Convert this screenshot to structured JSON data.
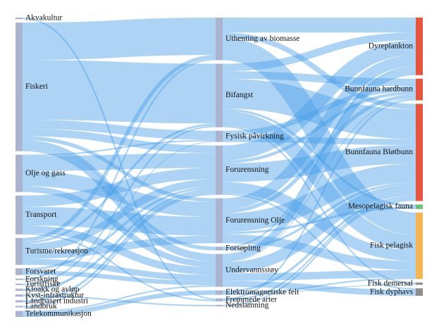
{
  "chart_data": {
    "type": "sankey",
    "link_color": "#4a9fe8",
    "nodes": [
      {
        "name": "Akvakultur",
        "column": 0,
        "color": "#aab4cf"
      },
      {
        "name": "Fiskeri",
        "column": 0,
        "color": "#aab4cf"
      },
      {
        "name": "Olje og gass",
        "column": 0,
        "color": "#aab4cf"
      },
      {
        "name": "Transport",
        "column": 0,
        "color": "#aab4cf"
      },
      {
        "name": "Turisme/rekreasjon",
        "column": 0,
        "color": "#aab4cf"
      },
      {
        "name": "Forsvaret",
        "column": 0,
        "color": "#aab4cf"
      },
      {
        "name": "Forskning",
        "column": 0,
        "color": "#aab4cf"
      },
      {
        "name": "Turistfiske",
        "column": 0,
        "color": "#aab4cf"
      },
      {
        "name": "Kloakk og avløp",
        "column": 0,
        "color": "#aab4cf"
      },
      {
        "name": "Kyst-infrastruktur",
        "column": 0,
        "color": "#aab4cf"
      },
      {
        "name": "Landbasert industri",
        "column": 0,
        "color": "#aab4cf"
      },
      {
        "name": "Landbruk",
        "column": 0,
        "color": "#aab4cf"
      },
      {
        "name": "Telekommunikasjon",
        "column": 0,
        "color": "#aab4cf"
      },
      {
        "name": "Uthenting av biomasse",
        "column": 1,
        "color": "#aab4cf"
      },
      {
        "name": "Bifangst",
        "column": 1,
        "color": "#aab4cf"
      },
      {
        "name": "Fysisk påvirkning",
        "column": 1,
        "color": "#aab4cf"
      },
      {
        "name": "Forurensning",
        "column": 1,
        "color": "#aab4cf"
      },
      {
        "name": "Forurensning Olje",
        "column": 1,
        "color": "#aab4cf"
      },
      {
        "name": "Forsøpling",
        "column": 1,
        "color": "#aab4cf"
      },
      {
        "name": "Undervannsstøy",
        "column": 1,
        "color": "#aab4cf"
      },
      {
        "name": "Elektromagnetiske felt",
        "column": 1,
        "color": "#aab4cf"
      },
      {
        "name": "Fremmede arter",
        "column": 1,
        "color": "#aab4cf"
      },
      {
        "name": "Nedslamning",
        "column": 1,
        "color": "#aab4cf"
      },
      {
        "name": "Dyreplankton",
        "column": 2,
        "color": "#e8553e"
      },
      {
        "name": "Bunnfauna hardbunn",
        "column": 2,
        "color": "#e8553e"
      },
      {
        "name": "Bunnfauna Bløtbunn",
        "column": 2,
        "color": "#e8553e"
      },
      {
        "name": "Mesopelagisk fauna",
        "column": 2,
        "color": "#6cc07a"
      },
      {
        "name": "Fisk pelagisk",
        "column": 2,
        "color": "#f5b552"
      },
      {
        "name": "Fisk demersal",
        "column": 2,
        "color": "#8c8c8c"
      },
      {
        "name": "Fisk dyphavs",
        "column": 2,
        "color": "#8c8c8c"
      }
    ],
    "links": [
      {
        "source": "Akvakultur",
        "target": "Fremmede arter",
        "value": 2
      },
      {
        "source": "Fiskeri",
        "target": "Uthenting av biomasse",
        "value": 50
      },
      {
        "source": "Fiskeri",
        "target": "Bifangst",
        "value": 80
      },
      {
        "source": "Fiskeri",
        "target": "Fysisk påvirkning",
        "value": 12
      },
      {
        "source": "Fiskeri",
        "target": "Forurensning",
        "value": 10
      },
      {
        "source": "Fiskeri",
        "target": "Forurensning Olje",
        "value": 5
      },
      {
        "source": "Fiskeri",
        "target": "Forsøpling",
        "value": 5
      },
      {
        "source": "Fiskeri",
        "target": "Undervannsstøy",
        "value": 10
      },
      {
        "source": "Olje og gass",
        "target": "Fysisk påvirkning",
        "value": 2
      },
      {
        "source": "Olje og gass",
        "target": "Forurensning",
        "value": 20
      },
      {
        "source": "Olje og gass",
        "target": "Forurensning Olje",
        "value": 20
      },
      {
        "source": "Olje og gass",
        "target": "Undervannsstøy",
        "value": 8
      },
      {
        "source": "Transport",
        "target": "Forurensning",
        "value": 15
      },
      {
        "source": "Transport",
        "target": "Forurensning Olje",
        "value": 25
      },
      {
        "source": "Transport",
        "target": "Undervannsstøy",
        "value": 10
      },
      {
        "source": "Transport",
        "target": "Fremmede arter",
        "value": 2
      },
      {
        "source": "Turisme/rekreasjon",
        "target": "Uthenting av biomasse",
        "value": 5
      },
      {
        "source": "Turisme/rekreasjon",
        "target": "Bifangst",
        "value": 3
      },
      {
        "source": "Turisme/rekreasjon",
        "target": "Forurensning",
        "value": 10
      },
      {
        "source": "Turisme/rekreasjon",
        "target": "Forurensning Olje",
        "value": 10
      },
      {
        "source": "Turisme/rekreasjon",
        "target": "Undervannsstøy",
        "value": 8
      },
      {
        "source": "Forsvaret",
        "target": "Forurensning",
        "value": 3
      },
      {
        "source": "Forsvaret",
        "target": "Undervannsstøy",
        "value": 6
      },
      {
        "source": "Forskning",
        "target": "Uthenting av biomasse",
        "value": 2
      },
      {
        "source": "Turistfiske",
        "target": "Bifangst",
        "value": 2
      },
      {
        "source": "Kloakk og avløp",
        "target": "Forurensning",
        "value": 3
      },
      {
        "source": "Kyst-infrastruktur",
        "target": "Fysisk påvirkning",
        "value": 1
      },
      {
        "source": "Kyst-infrastruktur",
        "target": "Nedslamning",
        "value": 2
      },
      {
        "source": "Landbasert industri",
        "target": "Forurensning",
        "value": 3
      },
      {
        "source": "Landbruk",
        "target": "Forurensning",
        "value": 2
      },
      {
        "source": "Telekommunikasjon",
        "target": "Undervannsstøy",
        "value": 2
      },
      {
        "source": "Telekommunikasjon",
        "target": "Elektromagnetiske felt",
        "value": 6
      },
      {
        "source": "Uthenting av biomasse",
        "target": "Dyreplankton",
        "value": 20
      },
      {
        "source": "Uthenting av biomasse",
        "target": "Bunnfauna Bløtbunn",
        "value": 7
      },
      {
        "source": "Uthenting av biomasse",
        "target": "Fisk pelagisk",
        "value": 30
      },
      {
        "source": "Bifangst",
        "target": "Dyreplankton",
        "value": 10
      },
      {
        "source": "Bifangst",
        "target": "Bunnfauna hardbunn",
        "value": 10
      },
      {
        "source": "Bifangst",
        "target": "Bunnfauna Bløtbunn",
        "value": 40
      },
      {
        "source": "Bifangst",
        "target": "Mesopelagisk fauna",
        "value": 3
      },
      {
        "source": "Bifangst",
        "target": "Fisk pelagisk",
        "value": 20
      },
      {
        "source": "Bifangst",
        "target": "Fisk demersal",
        "value": 2
      },
      {
        "source": "Fysisk påvirkning",
        "target": "Bunnfauna hardbunn",
        "value": 7
      },
      {
        "source": "Fysisk påvirkning",
        "target": "Bunnfauna Bløtbunn",
        "value": 8
      },
      {
        "source": "Forurensning",
        "target": "Dyreplankton",
        "value": 20
      },
      {
        "source": "Forurensning",
        "target": "Bunnfauna hardbunn",
        "value": 4
      },
      {
        "source": "Forurensning",
        "target": "Bunnfauna Bløtbunn",
        "value": 25
      },
      {
        "source": "Forurensning",
        "target": "Fisk pelagisk",
        "value": 15
      },
      {
        "source": "Forurensning",
        "target": "Fisk dyphavs",
        "value": 2
      },
      {
        "source": "Forurensning Olje",
        "target": "Dyreplankton",
        "value": 15
      },
      {
        "source": "Forurensning Olje",
        "target": "Bunnfauna hardbunn",
        "value": 5
      },
      {
        "source": "Forurensning Olje",
        "target": "Bunnfauna Bløtbunn",
        "value": 25
      },
      {
        "source": "Forurensning Olje",
        "target": "Mesopelagisk fauna",
        "value": 3
      },
      {
        "source": "Forurensning Olje",
        "target": "Fisk pelagisk",
        "value": 12
      },
      {
        "source": "Forsøpling",
        "target": "Dyreplankton",
        "value": 2
      },
      {
        "source": "Forsøpling",
        "target": "Bunnfauna Bløtbunn",
        "value": 3
      },
      {
        "source": "Undervannsstøy",
        "target": "Dyreplankton",
        "value": 10
      },
      {
        "source": "Undervannsstøy",
        "target": "Bunnfauna hardbunn",
        "value": 1
      },
      {
        "source": "Undervannsstøy",
        "target": "Bunnfauna Bløtbunn",
        "value": 15
      },
      {
        "source": "Undervannsstøy",
        "target": "Fisk pelagisk",
        "value": 10
      },
      {
        "source": "Undervannsstøy",
        "target": "Fisk dyphavs",
        "value": 8
      },
      {
        "source": "Elektromagnetiske felt",
        "target": "Bunnfauna Bløtbunn",
        "value": 3
      },
      {
        "source": "Elektromagnetiske felt",
        "target": "Fisk pelagisk",
        "value": 2
      },
      {
        "source": "Elektromagnetiske felt",
        "target": "Fisk demersal",
        "value": 1
      },
      {
        "source": "Fremmede arter",
        "target": "Bunnfauna hardbunn",
        "value": 2
      },
      {
        "source": "Fremmede arter",
        "target": "Bunnfauna Bløtbunn",
        "value": 2
      },
      {
        "source": "Nedslamning",
        "target": "Bunnfauna Bløtbunn",
        "value": 2
      }
    ]
  }
}
